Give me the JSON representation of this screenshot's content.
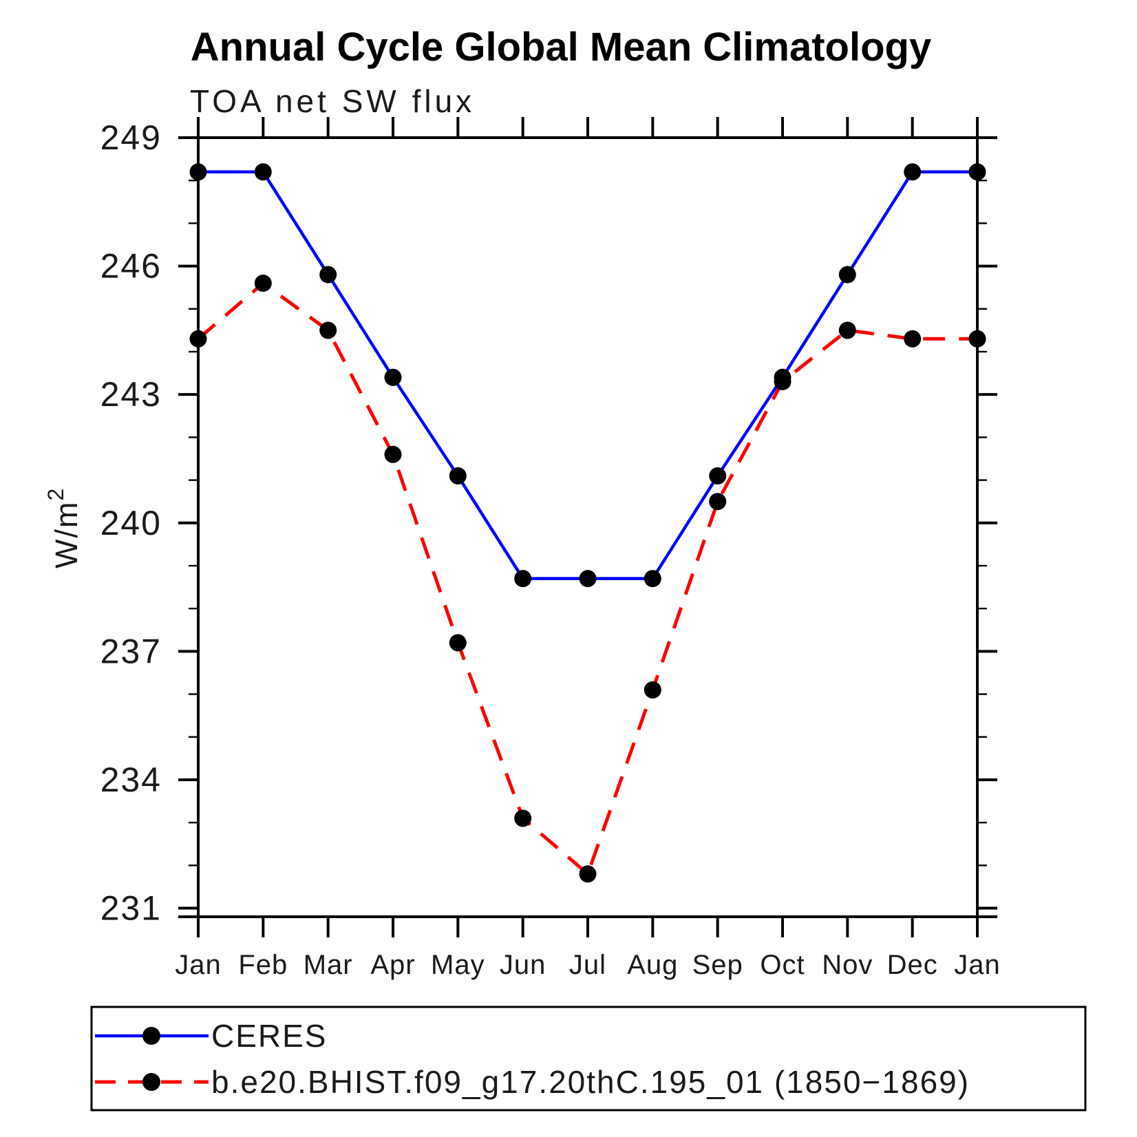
{
  "title": "Annual Cycle Global Mean Climatology",
  "subtitle": "TOA net SW flux",
  "ylabel_base": "W/m",
  "ylabel_exponent": "2",
  "chart_data": {
    "type": "line",
    "title": "Annual Cycle Global Mean Climatology",
    "subtitle": "TOA net SW flux",
    "xlabel": "",
    "ylabel": "W/m²",
    "categories": [
      "Jan",
      "Feb",
      "Mar",
      "Apr",
      "May",
      "Jun",
      "Jul",
      "Aug",
      "Sep",
      "Oct",
      "Nov",
      "Dec",
      "Jan"
    ],
    "ylim": [
      230.8,
      249.0
    ],
    "ytick_major": [
      231,
      234,
      237,
      240,
      243,
      246,
      249
    ],
    "ytick_minor_step": 1,
    "grid": false,
    "legend": {
      "position": "bottom-left",
      "boxed": true
    },
    "series": [
      {
        "name": "CERES",
        "line_style": "solid",
        "line_color": "#0000ff",
        "marker": "filled-circle",
        "marker_color": "#000000",
        "values": [
          248.2,
          248.2,
          245.8,
          243.4,
          241.1,
          238.7,
          238.7,
          238.7,
          241.1,
          243.4,
          245.8,
          248.2,
          248.2
        ]
      },
      {
        "name": "b.e20.BHIST.f09_g17.20thC.195_01 (1850−1869)",
        "line_style": "dashed",
        "line_color": "#ff0000",
        "marker": "filled-circle",
        "marker_color": "#000000",
        "values": [
          244.3,
          245.6,
          244.5,
          241.6,
          237.2,
          233.1,
          231.8,
          236.1,
          240.5,
          243.3,
          244.5,
          244.3,
          244.3
        ]
      }
    ],
    "axis_color": "#000000",
    "background_color": "#ffffff"
  }
}
